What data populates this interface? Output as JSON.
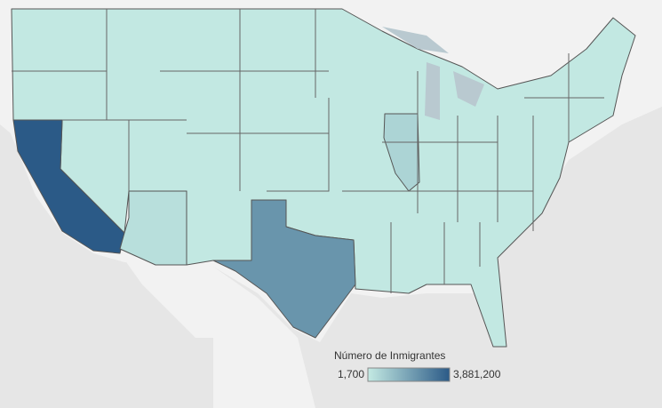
{
  "chart_data": {
    "type": "choropleth",
    "legend_title": "Número de Inmigrantes",
    "scale": {
      "min": {
        "value": 1700,
        "label": "1,700"
      },
      "max": {
        "value": 3881200,
        "label": "3,881,200"
      }
    },
    "color_range": [
      "#c4eae3",
      "#2b5a87"
    ],
    "values": [
      3881200,
      2300000,
      600000,
      300000,
      60000
    ]
  }
}
